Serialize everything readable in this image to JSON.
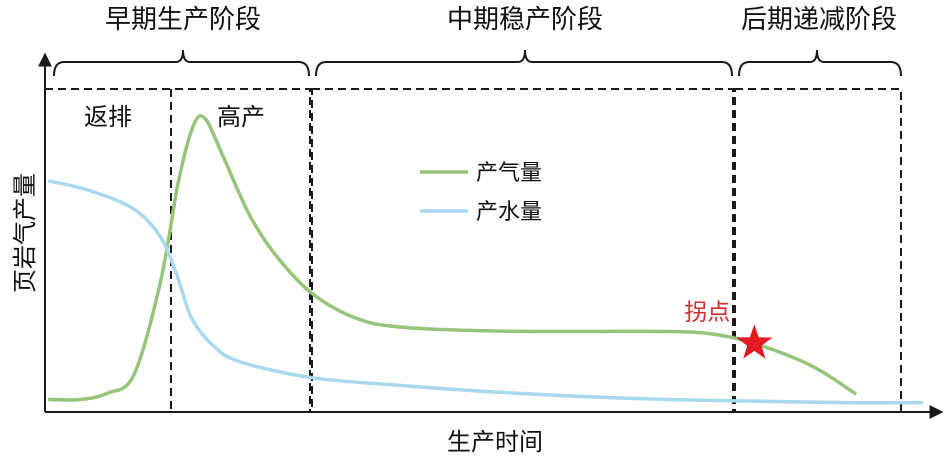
{
  "chart_data": {
    "type": "line",
    "title": "",
    "xlabel": "生产时间",
    "ylabel": "页岩气产量",
    "stages": [
      {
        "name": "早期生产阶段",
        "x_range": [
          0,
          0.3
        ]
      },
      {
        "name": "中期稳产阶段",
        "x_range": [
          0.3,
          0.797
        ]
      },
      {
        "name": "后期递减阶段",
        "x_range": [
          0.797,
          0.985
        ]
      }
    ],
    "sub_periods": [
      {
        "name": "返排",
        "x_range": [
          0,
          0.148
        ]
      },
      {
        "name": "高产",
        "x_range": [
          0.148,
          0.3
        ]
      }
    ],
    "series": [
      {
        "name": "产气量",
        "color": "#95c47a",
        "points": [
          [
            0.005,
            0.04
          ],
          [
            0.04,
            0.04
          ],
          [
            0.07,
            0.06
          ],
          [
            0.1,
            0.12
          ],
          [
            0.13,
            0.42
          ],
          [
            0.15,
            0.74
          ],
          [
            0.167,
            0.92
          ],
          [
            0.18,
            0.94
          ],
          [
            0.2,
            0.82
          ],
          [
            0.23,
            0.63
          ],
          [
            0.26,
            0.5
          ],
          [
            0.3,
            0.38
          ],
          [
            0.35,
            0.3
          ],
          [
            0.4,
            0.272
          ],
          [
            0.5,
            0.26
          ],
          [
            0.6,
            0.258
          ],
          [
            0.7,
            0.258
          ],
          [
            0.75,
            0.25
          ],
          [
            0.797,
            0.22
          ],
          [
            0.86,
            0.15
          ],
          [
            0.91,
            0.06
          ]
        ]
      },
      {
        "name": "产水量",
        "color": "#a9d9ef",
        "points": [
          [
            0.005,
            0.74
          ],
          [
            0.05,
            0.71
          ],
          [
            0.1,
            0.65
          ],
          [
            0.13,
            0.56
          ],
          [
            0.148,
            0.44
          ],
          [
            0.165,
            0.3
          ],
          [
            0.19,
            0.21
          ],
          [
            0.22,
            0.16
          ],
          [
            0.3,
            0.11
          ],
          [
            0.4,
            0.085
          ],
          [
            0.5,
            0.065
          ],
          [
            0.6,
            0.05
          ],
          [
            0.7,
            0.04
          ],
          [
            0.797,
            0.035
          ],
          [
            0.9,
            0.03
          ],
          [
            0.985,
            0.03
          ]
        ]
      }
    ],
    "annotations": [
      {
        "text": "拐点",
        "x": 0.797,
        "y": 0.22,
        "marker": "star",
        "color": "#e11a23"
      }
    ],
    "grid": false,
    "legend": "center"
  }
}
